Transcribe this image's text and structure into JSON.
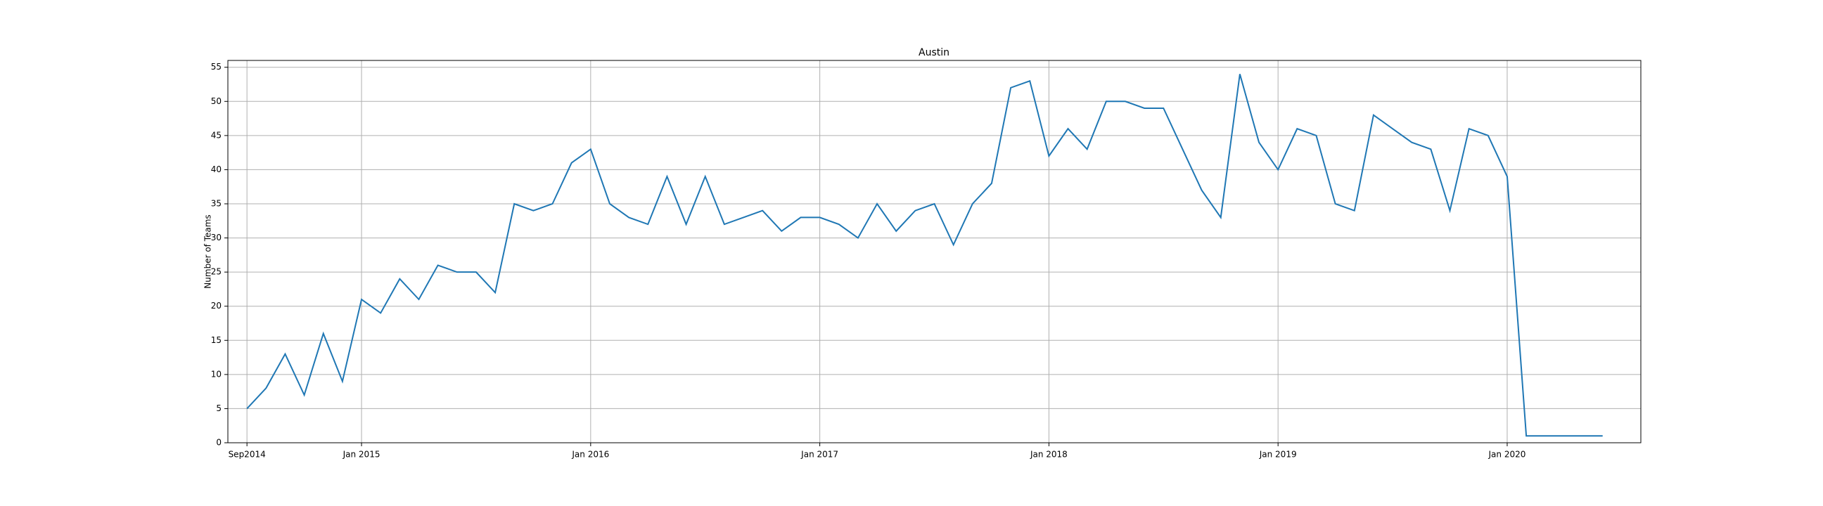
{
  "chart_data": {
    "type": "line",
    "title": "Austin",
    "y_label": "Number of Teams",
    "x": [
      0,
      1,
      2,
      3,
      4,
      5,
      6,
      7,
      8,
      9,
      10,
      11,
      12,
      13,
      14,
      15,
      16,
      17,
      18,
      19,
      20,
      21,
      22,
      23,
      24,
      25,
      26,
      27,
      28,
      29,
      30,
      31,
      32,
      33,
      34,
      35,
      36,
      37,
      38,
      39,
      40,
      41,
      42,
      43,
      44,
      45,
      46,
      47,
      48,
      49,
      50,
      51,
      52,
      53,
      54,
      55,
      56,
      57,
      58,
      59,
      60,
      61,
      62,
      63,
      64,
      65,
      66,
      67,
      68,
      69,
      70,
      71
    ],
    "series": [
      {
        "name": "Austin",
        "color": "#1f77b4",
        "values": [
          5,
          8,
          13,
          7,
          16,
          9,
          21,
          19,
          24,
          21,
          26,
          25,
          25,
          22,
          35,
          34,
          35,
          41,
          43,
          35,
          33,
          32,
          39,
          32,
          39,
          32,
          33,
          34,
          31,
          33,
          33,
          32,
          30,
          35,
          31,
          34,
          35,
          29,
          35,
          38,
          52,
          53,
          42,
          46,
          43,
          50,
          50,
          49,
          49,
          43,
          37,
          33,
          54,
          44,
          40,
          46,
          45,
          35,
          34,
          48,
          46,
          44,
          43,
          34,
          46,
          45,
          39,
          1,
          1,
          1,
          1,
          1
        ]
      }
    ],
    "xlim": [
      -1,
      73
    ],
    "xticks": [
      {
        "value": 0,
        "label": "Sep2014"
      },
      {
        "value": 6,
        "label": "Jan 2015"
      },
      {
        "value": 18,
        "label": "Jan 2016"
      },
      {
        "value": 30,
        "label": "Jan 2017"
      },
      {
        "value": 42,
        "label": "Jan 2018"
      },
      {
        "value": 54,
        "label": "Jan 2019"
      },
      {
        "value": 66,
        "label": "Jan 2020"
      }
    ],
    "ylim": [
      0,
      56
    ],
    "yticks": [
      0,
      5,
      10,
      15,
      20,
      25,
      30,
      35,
      40,
      45,
      50,
      55
    ],
    "grid": true
  }
}
